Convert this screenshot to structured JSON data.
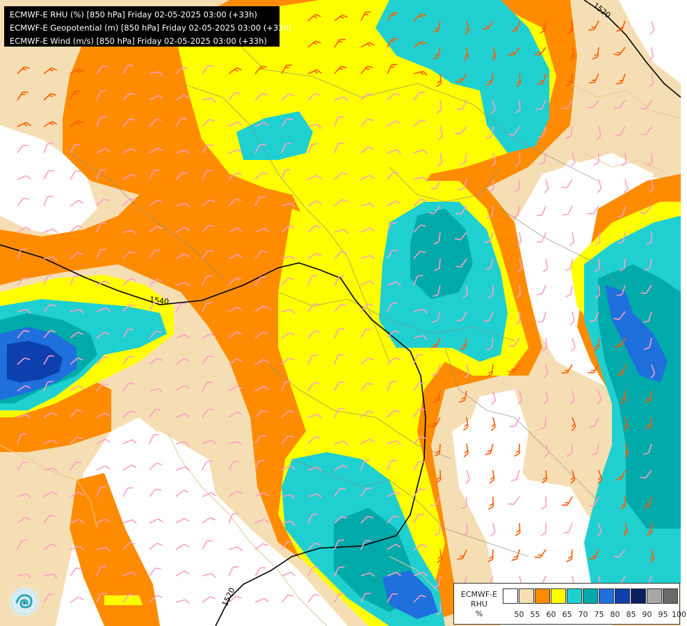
{
  "header": {
    "lines": [
      "ECMWF-E RHU (%) [850 hPa] Friday 02-05-2025 03:00 (+33h)",
      "ECMWF-E Geopotential (m) [850 hPa] Friday 02-05-2025 03:00 (+33h)",
      "ECMWF-E Wind (m/s) [850 hPa] Friday 02-05-2025 03:00 (+33h)"
    ]
  },
  "contours": {
    "labels": [
      "1520",
      "1540",
      "1520"
    ]
  },
  "logo": {
    "icon": "ecmwf-logo-icon"
  },
  "legend": {
    "title_lines": [
      "ECMWF-E",
      "RHU",
      "%"
    ],
    "colors": [
      "#ffffff",
      "#f5deb3",
      "#ff8c00",
      "#ffff00",
      "#20d0d0",
      "#00aaaa",
      "#1f6fdd",
      "#0d3fae",
      "#0a2060",
      "#a8a8a8",
      "#6a6a6a"
    ],
    "ticks": [
      "50",
      "55",
      "60",
      "65",
      "70",
      "75",
      "80",
      "85",
      "90",
      "95",
      "100"
    ]
  },
  "palette": {
    "rh_below_50": "#ffffff",
    "rh_50": "#f5deb3",
    "rh_60": "#ff8c00",
    "rh_65": "#ffff00",
    "rh_70": "#20d0d0",
    "rh_75": "#00aaaa",
    "rh_80": "#1f6fdd",
    "rh_85": "#0d3fae",
    "geopotential_line": "#000000",
    "wind_barb_light": "#ff9ec4",
    "wind_barb_strong": "#ff5a00",
    "borders": "#888888"
  }
}
